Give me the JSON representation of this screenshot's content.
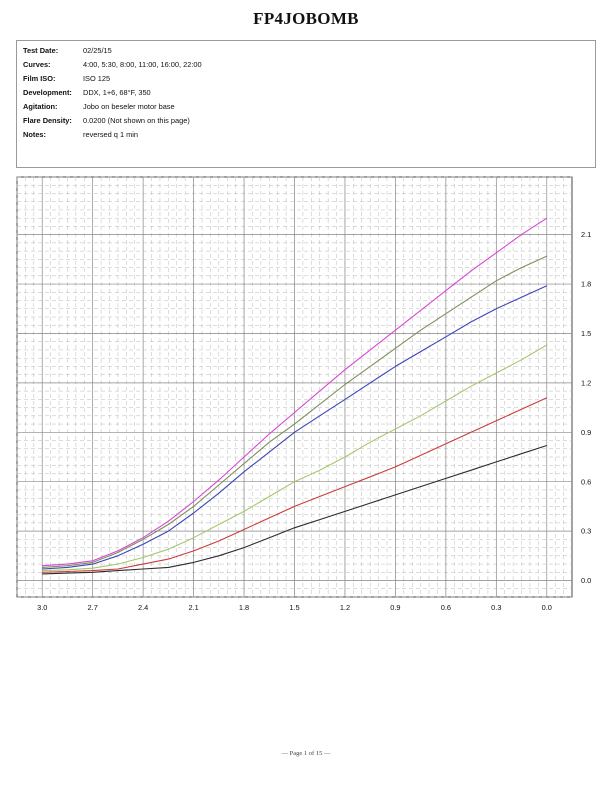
{
  "title": "FP4JOBOMB",
  "info": [
    {
      "label": "Test Date:",
      "value": "02/25/15"
    },
    {
      "label": "Curves:",
      "value": "4:00, 5:30, 8:00, 11:00, 16:00, 22:00"
    },
    {
      "label": "Film ISO:",
      "value": "ISO 125"
    },
    {
      "label": "Development:",
      "value": "DDX, 1+6, 68°F, 350"
    },
    {
      "label": "Agitation:",
      "value": "Jobo on beseler motor base"
    },
    {
      "label": "Flare Density:",
      "value": "0.0200 (Not shown on this page)"
    },
    {
      "label": "Notes:",
      "value": "reversed q 1 min"
    }
  ],
  "footer": "— Page 1 of 15 —",
  "chart_data": {
    "type": "line",
    "xlabel": "",
    "ylabel": "",
    "xlim": [
      3.15,
      -0.15
    ],
    "ylim": [
      -0.1,
      2.45
    ],
    "x_ticks": [
      3.0,
      2.7,
      2.4,
      2.1,
      1.8,
      1.5,
      1.2,
      0.9,
      0.6,
      0.3,
      0.0
    ],
    "x_tick_labels": [
      "3.0",
      "2.7",
      "2.4",
      "2.1",
      "1.8",
      "1.5",
      "1.2",
      "0.9",
      "0.6",
      "0.3",
      "0.0"
    ],
    "y_ticks": [
      0.0,
      0.3,
      0.6,
      0.9,
      1.2,
      1.5,
      1.8,
      2.1
    ],
    "y_tick_labels": [
      "0.0",
      "0.3",
      "0.6",
      "0.9",
      "1.2",
      "1.5",
      "1.8",
      "2.1"
    ],
    "grid": true,
    "x": [
      3.0,
      2.85,
      2.7,
      2.55,
      2.4,
      2.25,
      2.1,
      1.95,
      1.8,
      1.65,
      1.5,
      1.35,
      1.2,
      1.05,
      0.9,
      0.75,
      0.6,
      0.45,
      0.3,
      0.15,
      0.0
    ],
    "series": [
      {
        "color": "#2b2b2b",
        "values": [
          0.04,
          0.045,
          0.05,
          0.06,
          0.07,
          0.08,
          0.11,
          0.15,
          0.2,
          0.26,
          0.32,
          0.37,
          0.42,
          0.47,
          0.52,
          0.57,
          0.62,
          0.67,
          0.72,
          0.77,
          0.82
        ]
      },
      {
        "color": "#cc3b3b",
        "values": [
          0.05,
          0.055,
          0.06,
          0.07,
          0.1,
          0.13,
          0.18,
          0.24,
          0.31,
          0.38,
          0.45,
          0.51,
          0.57,
          0.63,
          0.69,
          0.76,
          0.83,
          0.9,
          0.97,
          1.04,
          1.11
        ]
      },
      {
        "color": "#a7c76a",
        "values": [
          0.06,
          0.065,
          0.075,
          0.1,
          0.14,
          0.19,
          0.26,
          0.34,
          0.42,
          0.51,
          0.6,
          0.67,
          0.75,
          0.84,
          0.92,
          1.0,
          1.09,
          1.18,
          1.26,
          1.34,
          1.43
        ]
      },
      {
        "color": "#3b45b8",
        "values": [
          0.07,
          0.08,
          0.1,
          0.15,
          0.22,
          0.3,
          0.41,
          0.53,
          0.66,
          0.78,
          0.9,
          1.0,
          1.1,
          1.2,
          1.3,
          1.39,
          1.48,
          1.57,
          1.65,
          1.72,
          1.79
        ]
      },
      {
        "color": "#7e8f5b",
        "values": [
          0.08,
          0.09,
          0.11,
          0.17,
          0.25,
          0.34,
          0.45,
          0.58,
          0.71,
          0.84,
          0.95,
          1.07,
          1.19,
          1.3,
          1.41,
          1.52,
          1.62,
          1.72,
          1.82,
          1.9,
          1.97
        ]
      },
      {
        "color": "#d846d4",
        "values": [
          0.09,
          0.1,
          0.12,
          0.18,
          0.26,
          0.36,
          0.48,
          0.61,
          0.75,
          0.89,
          1.02,
          1.15,
          1.28,
          1.4,
          1.52,
          1.64,
          1.76,
          1.88,
          1.99,
          2.1,
          2.2
        ]
      }
    ]
  }
}
